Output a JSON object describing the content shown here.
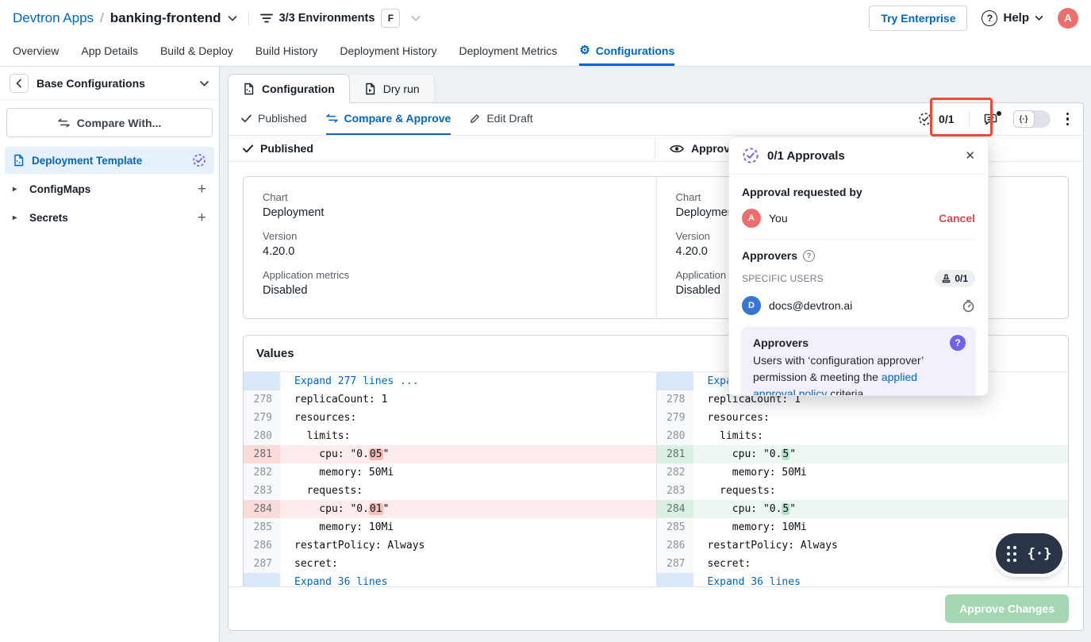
{
  "header": {
    "app_portfolio": "Devtron Apps",
    "breadcrumb_separator": "/",
    "app_name": "banking-frontend",
    "environments_label": "3/3 Environments",
    "environment_badge": "F",
    "try_enterprise_label": "Try Enterprise",
    "help_label": "Help",
    "help_icon": "?",
    "avatar_initial": "A"
  },
  "nav": {
    "tabs": [
      {
        "label": "Overview"
      },
      {
        "label": "App Details"
      },
      {
        "label": "Build & Deploy"
      },
      {
        "label": "Build History"
      },
      {
        "label": "Deployment History"
      },
      {
        "label": "Deployment Metrics"
      },
      {
        "label": "Configurations"
      }
    ]
  },
  "sidebar": {
    "title": "Base Configurations",
    "compare_with_label": "Compare With...",
    "items": [
      {
        "label": "Deployment Template"
      },
      {
        "label": "ConfigMaps"
      },
      {
        "label": "Secrets"
      }
    ]
  },
  "workspace": {
    "tabs": [
      {
        "label": "Configuration"
      },
      {
        "label": "Dry run"
      }
    ],
    "subtabs": [
      {
        "label": "Published"
      },
      {
        "label": "Compare & Approve"
      },
      {
        "label": "Edit Draft"
      }
    ],
    "toolbar": {
      "approvals_count": "0/1",
      "code_toggle_glyph": "{·}"
    },
    "diff_header_left": "Published",
    "diff_header_right": "Approval pending"
  },
  "metadata": {
    "left": {
      "chart_label": "Chart",
      "chart": "Deployment",
      "version_label": "Version",
      "version": "4.20.0",
      "metrics_label": "Application metrics",
      "metrics": "Disabled"
    },
    "right": {
      "chart_label": "Chart",
      "chart": "Deployment",
      "version_label": "Version",
      "version": "4.20.0",
      "metrics_label": "Application metrics",
      "metrics": "Disabled"
    }
  },
  "values": {
    "title": "Values",
    "expand_top": "Expand 277 lines ...",
    "expand_bottom": "Expand 36 lines",
    "left_lines": [
      {
        "num": "278",
        "text": "replicaCount: 1"
      },
      {
        "num": "279",
        "text": "resources:"
      },
      {
        "num": "280",
        "text": "  limits:"
      },
      {
        "num": "281",
        "pre": "    cpu: \"0.",
        "hl": "05",
        "post": "\"",
        "type": "removed"
      },
      {
        "num": "282",
        "text": "    memory: 50Mi"
      },
      {
        "num": "283",
        "text": "  requests:"
      },
      {
        "num": "284",
        "pre": "    cpu: \"0.",
        "hl": "01",
        "post": "\"",
        "type": "removed"
      },
      {
        "num": "285",
        "text": "    memory: 10Mi"
      },
      {
        "num": "286",
        "text": "restartPolicy: Always"
      },
      {
        "num": "287",
        "text": "secret:"
      }
    ],
    "right_lines": [
      {
        "num": "278",
        "text": "replicaCount: 1"
      },
      {
        "num": "279",
        "text": "resources:"
      },
      {
        "num": "280",
        "text": "  limits:"
      },
      {
        "num": "281",
        "pre": "    cpu: \"0.",
        "hl": "5",
        "post": "\"",
        "type": "added"
      },
      {
        "num": "282",
        "text": "    memory: 50Mi"
      },
      {
        "num": "283",
        "text": "  requests:"
      },
      {
        "num": "284",
        "pre": "    cpu: \"0.",
        "hl": "5",
        "post": "\"",
        "type": "added"
      },
      {
        "num": "285",
        "text": "    memory: 10Mi"
      },
      {
        "num": "286",
        "text": "restartPolicy: Always"
      },
      {
        "num": "287",
        "text": "secret:"
      }
    ]
  },
  "approvals_popup": {
    "title": "0/1 Approvals",
    "requested_by_label": "Approval requested by",
    "requester_name": "You",
    "requester_avatar_initial": "A",
    "cancel_label": "Cancel",
    "approvers_label": "Approvers",
    "specific_users_label": "SPECIFIC USERS",
    "specific_users_count": "0/1",
    "approver_email": "docs@devtron.ai",
    "approver_avatar_initial": "D",
    "tooltip": {
      "title": "Approvers",
      "badge": "?",
      "text_before": "Users with ‘configuration approver’ permission & meeting the ",
      "link_text": "applied approval policy",
      "text_after": " criteria"
    }
  },
  "footer": {
    "approve_button_label": "Approve Changes"
  },
  "colors": {
    "brand_blue": "#0066cc",
    "purple_approval": "#7161ef",
    "removed_line_bg": "#fdecec",
    "removed_word_bg": "#f5bcb8",
    "added_line_bg": "#edf7f1",
    "added_word_bg": "#b4e4c8",
    "annotation_red": "#ee4836",
    "approve_button_green": "#a5d8b2",
    "cancel_red": "#e5484d",
    "avatar_red": "#ee6e6e",
    "avatar_blue": "#3575d3"
  }
}
